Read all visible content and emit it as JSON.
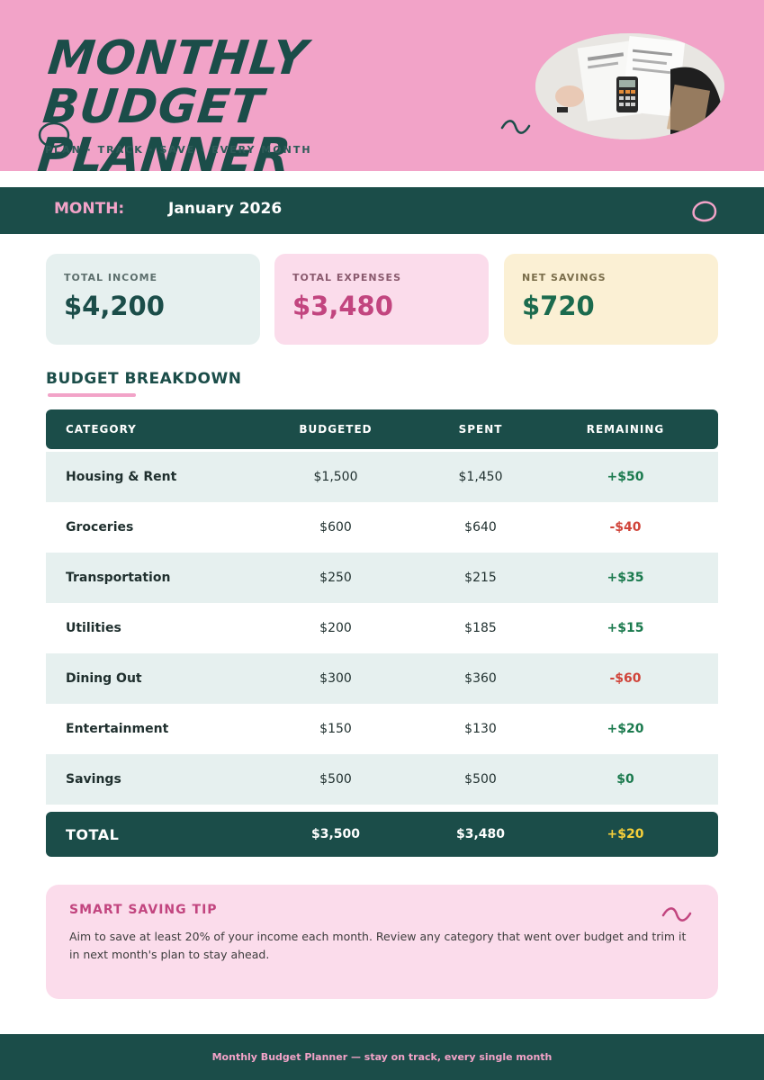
{
  "header": {
    "title": "MONTHLY BUDGET PLANNER",
    "tagline": "PLAN · TRACK · SAVE · EVERY MONTH"
  },
  "month_bar": {
    "label": "MONTH:",
    "value": "January 2026"
  },
  "summary": {
    "income": {
      "label": "TOTAL INCOME",
      "value": "$4,200"
    },
    "expenses": {
      "label": "TOTAL EXPENSES",
      "value": "$3,480"
    },
    "savings": {
      "label": "NET SAVINGS",
      "value": "$720"
    }
  },
  "breakdown": {
    "title": "BUDGET BREAKDOWN",
    "columns": [
      "CATEGORY",
      "BUDGETED",
      "SPENT",
      "REMAINING"
    ],
    "rows": [
      {
        "category": "Housing & Rent",
        "budgeted": "$1,500",
        "spent": "$1,450",
        "remaining": "+$50"
      },
      {
        "category": "Groceries",
        "budgeted": "$600",
        "spent": "$640",
        "remaining": "-$40"
      },
      {
        "category": "Transportation",
        "budgeted": "$250",
        "spent": "$215",
        "remaining": "+$35"
      },
      {
        "category": "Utilities",
        "budgeted": "$200",
        "spent": "$185",
        "remaining": "+$15"
      },
      {
        "category": "Dining Out",
        "budgeted": "$300",
        "spent": "$360",
        "remaining": "-$60"
      },
      {
        "category": "Entertainment",
        "budgeted": "$150",
        "spent": "$130",
        "remaining": "+$20"
      },
      {
        "category": "Savings",
        "budgeted": "$500",
        "spent": "$500",
        "remaining": "$0"
      }
    ],
    "total": {
      "category": "TOTAL",
      "budgeted": "$3,500",
      "spent": "$3,480",
      "remaining": "+$20"
    }
  },
  "tip": {
    "title": "SMART SAVING TIP",
    "body": "Aim to save at least 20% of your income each month. Review any category that went over budget and trim it in next month's plan to stay ahead."
  },
  "footer": {
    "text": "Monthly Budget Planner — stay on track, every single month"
  },
  "colors": {
    "pink": "#f2a3c8",
    "teal": "#1b4d49",
    "positive": "#1b7a4e",
    "negative": "#d0443a",
    "total_remaining": "#f5cf3a"
  },
  "icons": [
    "circle-doodle-icon",
    "wave-doodle-icon",
    "ring-doodle-icon"
  ]
}
